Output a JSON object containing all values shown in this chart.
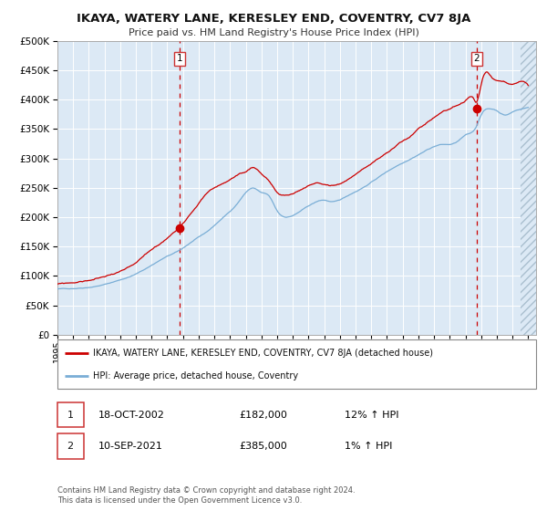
{
  "title": "IKAYA, WATERY LANE, KERESLEY END, COVENTRY, CV7 8JA",
  "subtitle": "Price paid vs. HM Land Registry's House Price Index (HPI)",
  "bg_color": "#dce9f5",
  "grid_color": "#ffffff",
  "red_line_color": "#cc0000",
  "blue_line_color": "#7aaed6",
  "marker_color": "#cc0000",
  "vline_color": "#cc0000",
  "legend_label_red": "IKAYA, WATERY LANE, KERESLEY END, COVENTRY, CV7 8JA (detached house)",
  "legend_label_blue": "HPI: Average price, detached house, Coventry",
  "sale1_date": "18-OCT-2002",
  "sale1_price": "£182,000",
  "sale1_hpi": "12% ↑ HPI",
  "sale2_date": "10-SEP-2021",
  "sale2_price": "£385,000",
  "sale2_hpi": "1% ↑ HPI",
  "footnote": "Contains HM Land Registry data © Crown copyright and database right 2024.\nThis data is licensed under the Open Government Licence v3.0.",
  "ylim": [
    0,
    500000
  ],
  "yticks": [
    0,
    50000,
    100000,
    150000,
    200000,
    250000,
    300000,
    350000,
    400000,
    450000,
    500000
  ],
  "sale1_x": 2002.8,
  "sale1_y": 182000,
  "sale2_x": 2021.7,
  "sale2_y": 385000,
  "xmin": 1995.0,
  "xmax": 2025.5,
  "hatch_start": 2024.5
}
